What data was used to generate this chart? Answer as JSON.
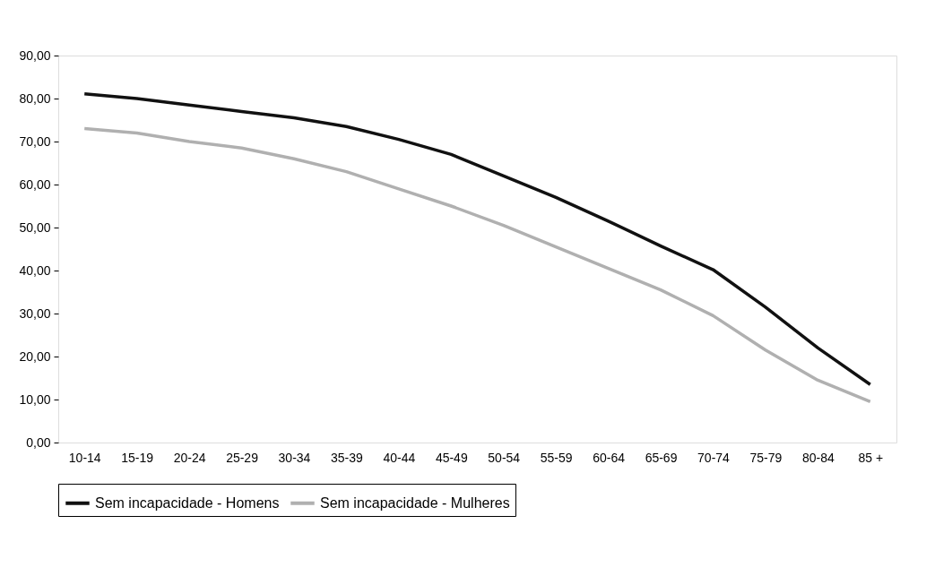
{
  "chart_data": {
    "type": "line",
    "categories": [
      "10-14",
      "15-19",
      "20-24",
      "25-29",
      "30-34",
      "35-39",
      "40-44",
      "45-49",
      "50-54",
      "55-59",
      "60-64",
      "65-69",
      "70-74",
      "75-79",
      "80-84",
      "85 +"
    ],
    "series": [
      {
        "name": "Sem incapacidade - Homens",
        "color": "#111111",
        "values": [
          81.1,
          80,
          78.5,
          77,
          75.5,
          73.5,
          70.5,
          67,
          62,
          57,
          51.5,
          45.7,
          40.2,
          31.5,
          22,
          13.5
        ]
      },
      {
        "name": "Sem incapacidade - Mulheres",
        "color": "#b0b0b0",
        "values": [
          73,
          72,
          70,
          68.5,
          66,
          63,
          59,
          55,
          50.5,
          45.5,
          40.5,
          35.5,
          29.5,
          21.5,
          14.5,
          9.5
        ]
      }
    ],
    "ylim": [
      0,
      90
    ],
    "yticks": [
      {
        "value": 0,
        "label": "0,00"
      },
      {
        "value": 10,
        "label": "10,00"
      },
      {
        "value": 20,
        "label": "20,00"
      },
      {
        "value": 30,
        "label": "30,00"
      },
      {
        "value": 40,
        "label": "40,00"
      },
      {
        "value": 50,
        "label": "50,00"
      },
      {
        "value": 60,
        "label": "60,00"
      },
      {
        "value": 70,
        "label": "70,00"
      },
      {
        "value": 80,
        "label": "80,00"
      },
      {
        "value": 90,
        "label": "90,00"
      }
    ],
    "grid": false,
    "legend": "bottom",
    "marker": "none",
    "line_style": "solid"
  }
}
